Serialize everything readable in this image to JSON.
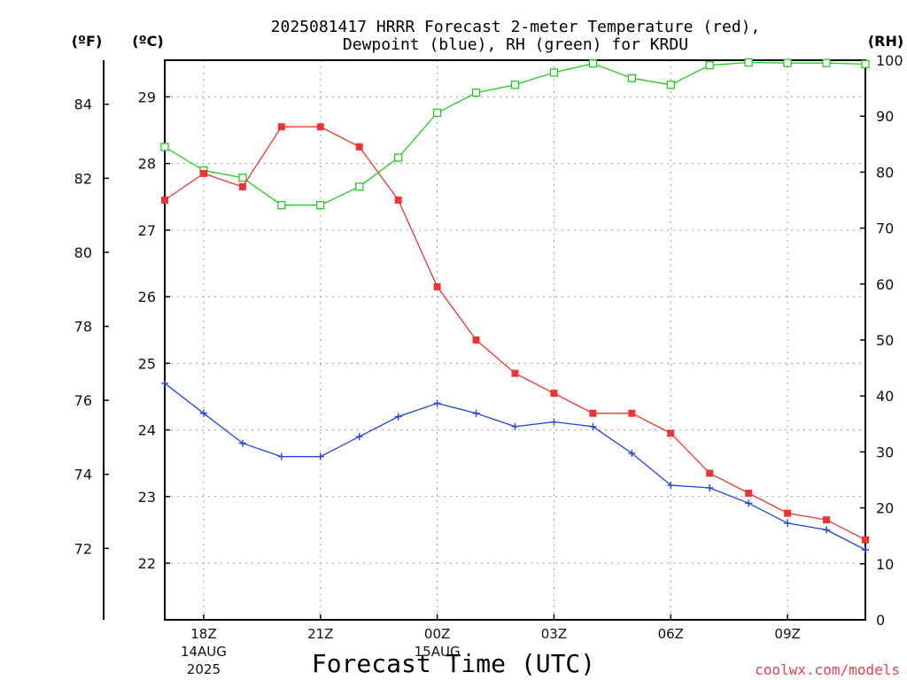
{
  "title_line1": "2025081417 HRRR Forecast 2-meter Temperature (red),",
  "title_line2": "Dewpoint (blue), RH (green) for KRDU",
  "unit_f": "(ºF)",
  "unit_c": "(ºC)",
  "unit_rh": "(RH)",
  "xlabel": "Forecast Time (UTC)",
  "credit": "coolwx.com/models",
  "colors": {
    "temperature": "#ee3333",
    "dewpoint": "#2244dd",
    "rh": "#22cc22"
  },
  "chart_data": {
    "type": "line",
    "title": "2025081417 HRRR Forecast 2-meter Temperature (red), Dewpoint (blue), RH (green) for KRDU",
    "xlabel": "Forecast Time (UTC)",
    "x": [
      "17Z",
      "18Z",
      "19Z",
      "20Z",
      "21Z",
      "22Z",
      "23Z",
      "00Z",
      "01Z",
      "02Z",
      "03Z",
      "04Z",
      "05Z",
      "06Z",
      "07Z",
      "08Z",
      "09Z",
      "10Z",
      "11Z"
    ],
    "x_ticks": [
      {
        "label": "18Z",
        "sub1": "14AUG",
        "sub2": "2025",
        "index": 1
      },
      {
        "label": "21Z",
        "sub1": "",
        "sub2": "",
        "index": 4
      },
      {
        "label": "00Z",
        "sub1": "15AUG",
        "sub2": "",
        "index": 7
      },
      {
        "label": "03Z",
        "sub1": "",
        "sub2": "",
        "index": 10
      },
      {
        "label": "06Z",
        "sub1": "",
        "sub2": "",
        "index": 13
      },
      {
        "label": "09Z",
        "sub1": "",
        "sub2": "",
        "index": 16
      }
    ],
    "y_left_c": {
      "ylim": [
        21.15,
        29.55
      ],
      "ticks": [
        22,
        23,
        24,
        25,
        26,
        27,
        28,
        29
      ]
    },
    "y_left_f": {
      "ticks": [
        72,
        74,
        76,
        78,
        80,
        82,
        84
      ]
    },
    "y_right_rh": {
      "ylim": [
        0,
        100
      ],
      "ticks": [
        0,
        10,
        20,
        30,
        40,
        50,
        60,
        70,
        80,
        90,
        100
      ]
    },
    "grid": true,
    "series": [
      {
        "name": "Temperature",
        "axis": "c",
        "marker": "filled-square",
        "values": [
          27.45,
          27.85,
          27.65,
          28.55,
          28.55,
          28.25,
          27.45,
          26.15,
          25.35,
          24.85,
          24.55,
          24.25,
          24.25,
          23.95,
          23.35,
          23.05,
          22.75,
          22.65,
          22.35
        ]
      },
      {
        "name": "Dewpoint",
        "axis": "c",
        "marker": "plus",
        "values": [
          24.7,
          24.25,
          23.8,
          23.6,
          23.6,
          23.9,
          24.2,
          24.4,
          24.25,
          24.05,
          24.12,
          24.05,
          23.65,
          23.17,
          23.13,
          22.9,
          22.6,
          22.5,
          22.2
        ]
      },
      {
        "name": "RH",
        "axis": "rh",
        "marker": "open-square",
        "values": [
          84.5,
          80.3,
          79.0,
          74.1,
          74.1,
          77.4,
          82.6,
          90.6,
          94.2,
          95.6,
          97.8,
          99.4,
          96.8,
          95.6,
          99.1,
          99.6,
          99.5,
          99.5,
          99.3
        ]
      }
    ]
  }
}
